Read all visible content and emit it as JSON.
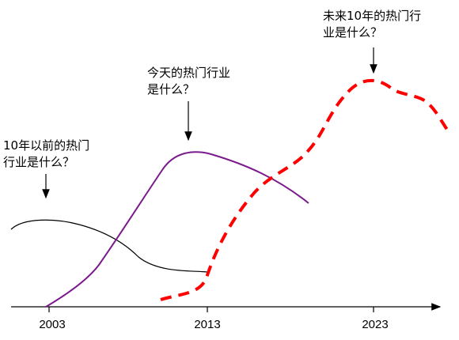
{
  "annotations": {
    "past": {
      "line1": "10年以前的热门",
      "line2": "行业是什么？"
    },
    "present": {
      "line1": "今天的热门行业",
      "line2": "是什么？"
    },
    "future": {
      "line1": "未来10年的热门行",
      "line2": "业是什么？"
    }
  },
  "axis": {
    "ticks": [
      "2003",
      "2013",
      "2023"
    ]
  },
  "colors": {
    "past_curve": "#000000",
    "present_curve": "#7b1a8c",
    "future_curve": "#ff0000",
    "axis": "#000000"
  }
}
